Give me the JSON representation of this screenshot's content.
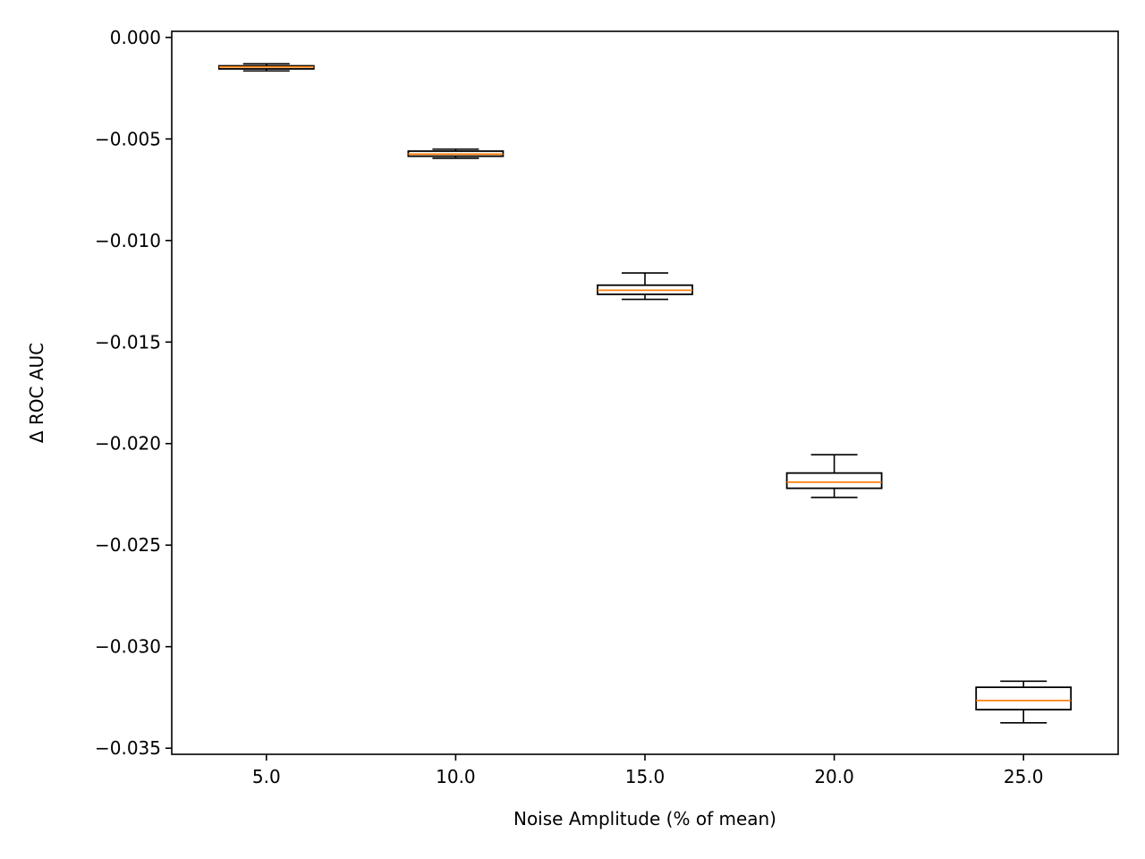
{
  "chart_data": {
    "type": "box",
    "title": "",
    "xlabel": "Noise Amplitude (% of mean)",
    "ylabel": "Δ ROC AUC",
    "categories": [
      "5.0",
      "10.0",
      "15.0",
      "20.0",
      "25.0"
    ],
    "x_tick_labels": [
      "5.0",
      "10.0",
      "15.0",
      "20.0",
      "25.0"
    ],
    "y_ticks": [
      0.0,
      -0.005,
      -0.01,
      -0.015,
      -0.02,
      -0.025,
      -0.03,
      -0.035
    ],
    "y_tick_labels": [
      "0.000",
      "−0.005",
      "−0.010",
      "−0.015",
      "−0.020",
      "−0.025",
      "−0.030",
      "−0.035"
    ],
    "xlim": [
      2.5,
      27.5
    ],
    "ylim": [
      -0.0353,
      0.0003
    ],
    "grid": false,
    "boxes": [
      {
        "x": 5.0,
        "whisker_low": -0.00165,
        "q1": -0.00155,
        "median": -0.00145,
        "q3": -0.0014,
        "whisker_high": -0.0013
      },
      {
        "x": 10.0,
        "whisker_low": -0.00595,
        "q1": -0.00585,
        "median": -0.00575,
        "q3": -0.0056,
        "whisker_high": -0.0055
      },
      {
        "x": 15.0,
        "whisker_low": -0.0129,
        "q1": -0.01265,
        "median": -0.01245,
        "q3": -0.0122,
        "whisker_high": -0.0116
      },
      {
        "x": 20.0,
        "whisker_low": -0.02265,
        "q1": -0.0222,
        "median": -0.0219,
        "q3": -0.02145,
        "whisker_high": -0.02055
      },
      {
        "x": 25.0,
        "whisker_low": -0.03375,
        "q1": -0.0331,
        "median": -0.03265,
        "q3": -0.032,
        "whisker_high": -0.0317
      }
    ],
    "colors": {
      "box": "#000000",
      "median": "#ff7f0e",
      "axes": "#000000"
    }
  }
}
